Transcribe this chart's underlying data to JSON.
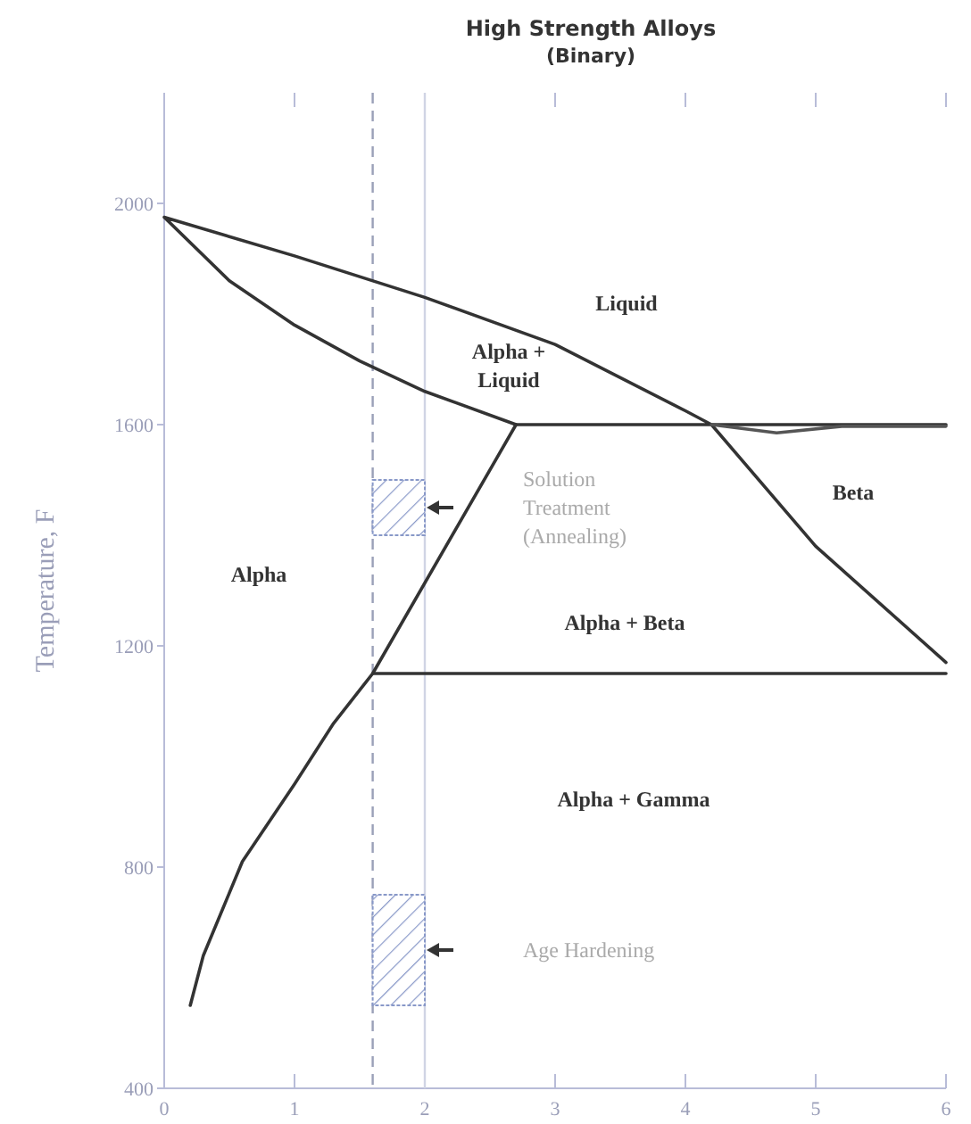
{
  "chart_data": {
    "type": "line",
    "title": "High Strength Alloys",
    "subtitle": "(Binary)",
    "ylabel": "Temperature, F",
    "xlim": [
      0,
      6
    ],
    "xticks": [
      0,
      1,
      2,
      3,
      4,
      5,
      6
    ],
    "ylim": [
      400,
      2200
    ],
    "yticks": [
      400,
      800,
      1200,
      1600,
      2000
    ],
    "marker": "none",
    "line_style": "solid",
    "series": [
      {
        "color": "#333333",
        "x": [
          6,
          5,
          4.2,
          4,
          3,
          2,
          1,
          0,
          0.5,
          1,
          1.5,
          2,
          2.7,
          6
        ],
        "values": [
          1170,
          1380,
          1600,
          1625,
          1745,
          1830,
          1905,
          1975,
          1860,
          1780,
          1715,
          1660,
          1600,
          1600
        ]
      },
      {
        "color": "#555555",
        "x": [
          4.2,
          4.7,
          5.2,
          6
        ],
        "values": [
          1600,
          1585,
          1597,
          1597
        ]
      },
      {
        "color": "#333333",
        "x": [
          0.2,
          0.3,
          0.6,
          1,
          1.3,
          1.6,
          2.7
        ],
        "values": [
          550,
          640,
          810,
          950,
          1060,
          1150,
          1600
        ]
      },
      {
        "color": "#333333",
        "x": [
          1.6,
          6
        ],
        "values": [
          1150,
          1150
        ]
      }
    ],
    "ref_lines": [
      {
        "axis": "x",
        "value": 1.6,
        "color": "#9aa0b8",
        "line_style": "dashed"
      },
      {
        "axis": "x",
        "value": 2,
        "color": "#d0d4e4",
        "line_style": "solid"
      }
    ],
    "bands": [
      {
        "axis": "y",
        "from": 1400,
        "to": 1500,
        "color": "#8898c8",
        "label": "Solution\nTreatment\n(Annealing)"
      },
      {
        "axis": "y",
        "from": 550,
        "to": 750,
        "color": "#8898c8",
        "label": "Age Hardening"
      }
    ],
    "annotations": [
      "Liquid",
      "Alpha +\nLiquid",
      "Alpha",
      "Beta",
      "Alpha + Beta",
      "Alpha + Gamma"
    ]
  }
}
